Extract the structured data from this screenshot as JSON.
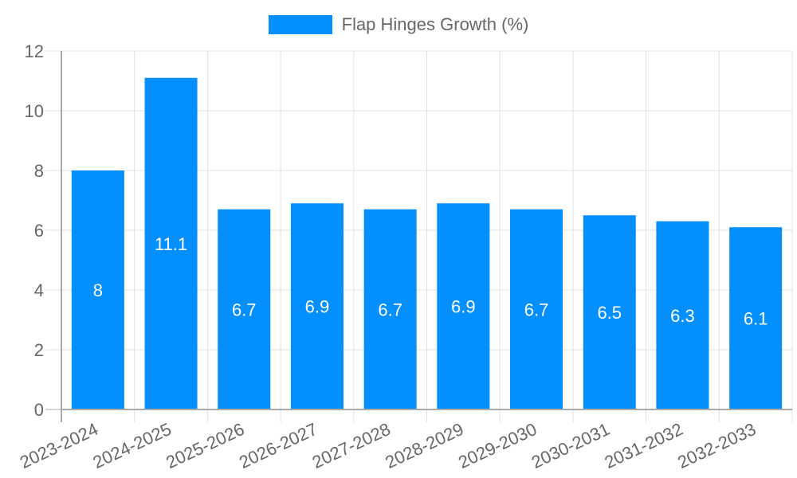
{
  "chart_data": {
    "type": "bar",
    "title": "",
    "xlabel": "",
    "ylabel": "",
    "legend": [
      {
        "label": "Flap Hinges Growth (%)",
        "color": "#038ffd"
      }
    ],
    "legend_position": "top",
    "categories": [
      "2023-2024",
      "2024-2025",
      "2025-2026",
      "2026-2027",
      "2027-2028",
      "2028-2029",
      "2029-2030",
      "2030-2031",
      "2031-2032",
      "2032-2033"
    ],
    "series": [
      {
        "name": "Flap Hinges Growth (%)",
        "values": [
          8,
          11.1,
          6.7,
          6.9,
          6.7,
          6.9,
          6.7,
          6.5,
          6.3,
          6.1
        ],
        "color": "#038ffd"
      }
    ],
    "data_labels": [
      "8",
      "11.1",
      "6.7",
      "6.9",
      "6.7",
      "6.9",
      "6.7",
      "6.5",
      "6.3",
      "6.1"
    ],
    "ylim": [
      0,
      12
    ],
    "yticks": [
      0,
      2,
      4,
      6,
      8,
      10,
      12
    ],
    "grid": true
  },
  "colors": {
    "bar": "#038ffd",
    "grid": "#e0e0e0",
    "axis": "#aaaaaa",
    "tick_text": "#666666",
    "data_label": "#ffffff"
  }
}
